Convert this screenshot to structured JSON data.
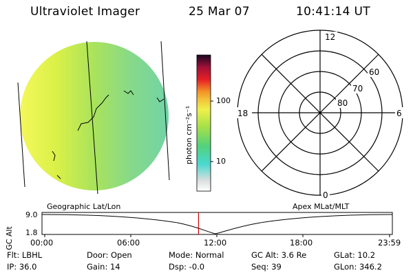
{
  "header": {
    "instrument": "Ultraviolet Imager",
    "date": "25 Mar 07",
    "time": "10:41:14 UT"
  },
  "colorbar": {
    "unit_label": "photon cm⁻²s⁻¹",
    "ticks": [
      {
        "value": 100,
        "label": "100"
      },
      {
        "value": 10,
        "label": "10"
      }
    ]
  },
  "polar_plot": {
    "mlt_labels": {
      "top": "12",
      "left": "18",
      "right": "6",
      "bottom": "0"
    },
    "mlat_labels": [
      "60",
      "70",
      "80"
    ]
  },
  "orbit_panel": {
    "left_label": "Geographic Lat/Lon",
    "right_label": "Apex MLat/MLT",
    "y_axis_label": "GC Alt",
    "y_ticks": [
      "9.0",
      "1.8"
    ],
    "time_ticks": [
      "00:00",
      "06:00",
      "12:00",
      "18:00",
      "23:59"
    ],
    "current_time_fraction": 0.446
  },
  "info": {
    "row1": [
      "Flt: LBHL",
      "Door: Open",
      "Mode: Normal",
      "GC Alt: 3.6 Re",
      "GLat: 10.2"
    ],
    "row2": [
      "IP: 36.0",
      "Gain: 14",
      "Dsp: -0.0",
      "Seq: 39",
      "GLon: 346.2"
    ]
  },
  "colors": {
    "marker": "#cc0000"
  }
}
